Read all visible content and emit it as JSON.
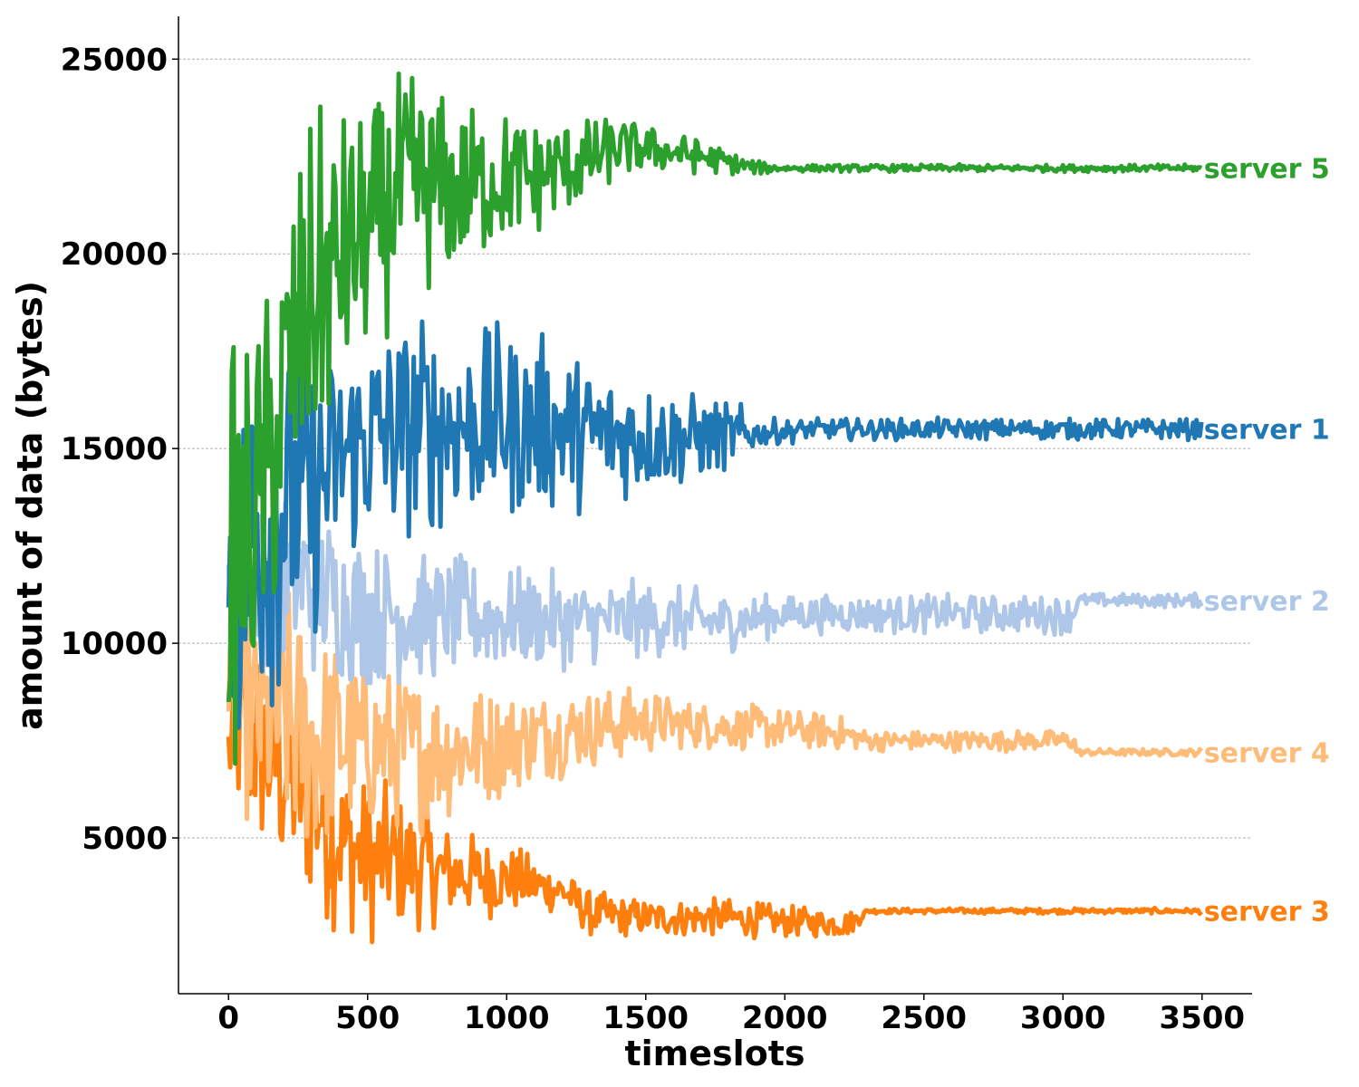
{
  "chart_data": {
    "type": "line",
    "title": "",
    "xlabel": "timeslots",
    "ylabel": "amount of data (bytes)",
    "xlim": [
      -180,
      3680
    ],
    "ylim": [
      1000,
      26100
    ],
    "x_ticks": [
      0,
      500,
      1000,
      1500,
      2000,
      2500,
      3000,
      3500
    ],
    "x_tick_labels": [
      "0",
      "500",
      "1000",
      "1500",
      "2000",
      "2500",
      "3000",
      "3500"
    ],
    "y_ticks": [
      5000,
      10000,
      15000,
      20000,
      25000
    ],
    "y_tick_labels": [
      "5000",
      "10000",
      "15000",
      "20000",
      "25000"
    ],
    "grid": "y-dashed",
    "legend": "end-of-line labels",
    "series": [
      {
        "name": "server 3",
        "color": "#ff7f0e",
        "envelope": {
          "x": [
            0,
            50,
            100,
            200,
            300,
            400,
            500,
            600,
            700,
            800,
            1000,
            1200,
            1300,
            1500,
            1800,
            2000,
            2230,
            2300,
            3500
          ],
          "low": [
            5500,
            4500,
            4000,
            3000,
            2600,
            2400,
            2000,
            2300,
            2500,
            2700,
            2900,
            3000,
            2400,
            2400,
            2400,
            2400,
            2400,
            3050,
            3050
          ],
          "high": [
            9000,
            11000,
            11000,
            10500,
            9500,
            7500,
            6800,
            6500,
            6000,
            5500,
            5000,
            4300,
            3700,
            3500,
            3500,
            3300,
            3200,
            3200,
            3200
          ]
        }
      },
      {
        "name": "server 4",
        "color": "#ffbb78",
        "envelope": {
          "x": [
            0,
            100,
            200,
            300,
            400,
            500,
            700,
            900,
            1000,
            1200,
            1500,
            1600,
            1800,
            2000,
            2200,
            2300,
            3040,
            3050,
            3500
          ],
          "low": [
            6500,
            4500,
            4000,
            4000,
            4500,
            4800,
            5000,
            5500,
            6000,
            6500,
            7000,
            7200,
            7200,
            7200,
            7200,
            7200,
            7200,
            7100,
            7100
          ],
          "high": [
            10000,
            11500,
            12000,
            11000,
            10500,
            10000,
            9500,
            9200,
            9000,
            9000,
            9000,
            8700,
            8500,
            8400,
            8200,
            7800,
            7800,
            7300,
            7300
          ]
        }
      },
      {
        "name": "server 2",
        "color": "#aec7e8",
        "envelope": {
          "x": [
            0,
            100,
            200,
            300,
            400,
            500,
            700,
            900,
            1100,
            1300,
            1500,
            1700,
            1800,
            2000,
            2500,
            3040,
            3050,
            3500
          ],
          "low": [
            10000,
            9500,
            9000,
            8800,
            8700,
            8700,
            8800,
            9000,
            9200,
            9300,
            9500,
            9600,
            9700,
            10200,
            10200,
            10200,
            10900,
            10900
          ],
          "high": [
            13000,
            14000,
            14500,
            14200,
            13500,
            13000,
            12500,
            12300,
            12000,
            11800,
            11700,
            11500,
            11400,
            11300,
            11300,
            11300,
            11300,
            11300
          ]
        }
      },
      {
        "name": "server 1",
        "color": "#1f77b4",
        "envelope": {
          "x": [
            0,
            100,
            200,
            300,
            400,
            500,
            700,
            900,
            1100,
            1300,
            1500,
            1700,
            1850,
            1900,
            2100,
            2500,
            3000,
            3500
          ],
          "low": [
            5500,
            7000,
            8500,
            9500,
            11500,
            11800,
            12500,
            12800,
            13000,
            13300,
            13600,
            14000,
            14500,
            15000,
            15200,
            15200,
            15200,
            15200
          ],
          "high": [
            16500,
            18900,
            18500,
            18000,
            18000,
            18700,
            18800,
            18400,
            18300,
            17500,
            17000,
            16500,
            16200,
            15800,
            15800,
            15800,
            15800,
            15800
          ]
        }
      },
      {
        "name": "server 5",
        "color": "#2ca02c",
        "envelope": {
          "x": [
            0,
            50,
            100,
            150,
            200,
            300,
            400,
            500,
            600,
            700,
            800,
            900,
            1000,
            1100,
            1200,
            1300,
            1400,
            1500,
            1600,
            1700,
            1800,
            1900,
            2000,
            2500,
            3000,
            3500
          ],
          "low": [
            6500,
            6300,
            8000,
            9000,
            11000,
            13500,
            15500,
            17000,
            18000,
            18500,
            19000,
            19500,
            20000,
            20200,
            20800,
            21200,
            21800,
            22000,
            22000,
            22000,
            22000,
            22000,
            22100,
            22100,
            22100,
            22100
          ],
          "high": [
            18000,
            18500,
            19000,
            20000,
            22000,
            24000,
            24200,
            24000,
            24800,
            25000,
            24200,
            24100,
            24000,
            23700,
            23700,
            23600,
            23600,
            23400,
            23200,
            23000,
            22700,
            22400,
            22300,
            22300,
            22300,
            22300
          ]
        }
      }
    ]
  }
}
